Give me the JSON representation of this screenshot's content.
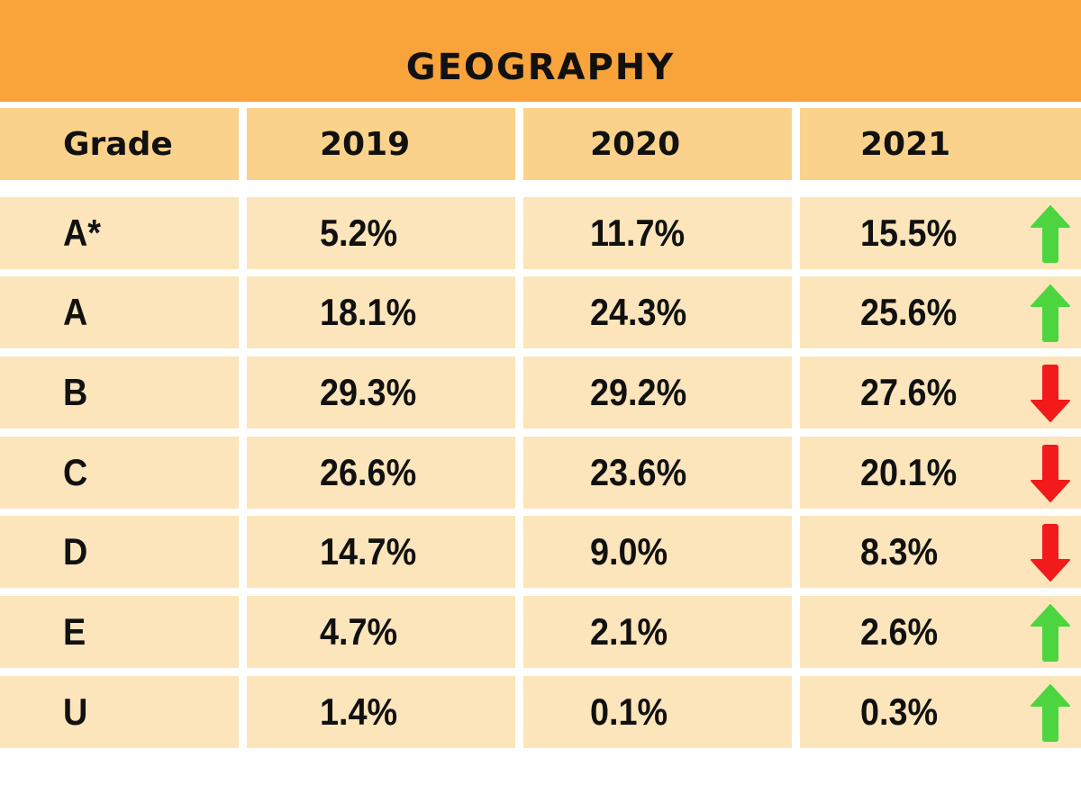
{
  "chart_data": {
    "type": "table",
    "title": "GEOGRAPHY",
    "columns": [
      "Grade",
      "2019",
      "2020",
      "2021"
    ],
    "rows": [
      {
        "grade": "A*",
        "values": [
          "5.2%",
          "11.7%",
          "15.5%"
        ],
        "trend": "up"
      },
      {
        "grade": "A",
        "values": [
          "18.1%",
          "24.3%",
          "25.6%"
        ],
        "trend": "up"
      },
      {
        "grade": "B",
        "values": [
          "29.3%",
          "29.2%",
          "27.6%"
        ],
        "trend": "down"
      },
      {
        "grade": "C",
        "values": [
          "26.6%",
          "23.6%",
          "20.1%"
        ],
        "trend": "down"
      },
      {
        "grade": "D",
        "values": [
          "14.7%",
          "9.0%",
          "8.3%"
        ],
        "trend": "down"
      },
      {
        "grade": "E",
        "values": [
          "4.7%",
          "2.1%",
          "2.6%"
        ],
        "trend": "up"
      },
      {
        "grade": "U",
        "values": [
          "1.4%",
          "0.1%",
          "0.3%"
        ],
        "trend": "up"
      }
    ]
  },
  "colors": {
    "banner": "#f9a33b",
    "header": "#fbd28b",
    "row": "#fce5bb",
    "up": "#4cd53f",
    "down": "#f21a1a"
  }
}
